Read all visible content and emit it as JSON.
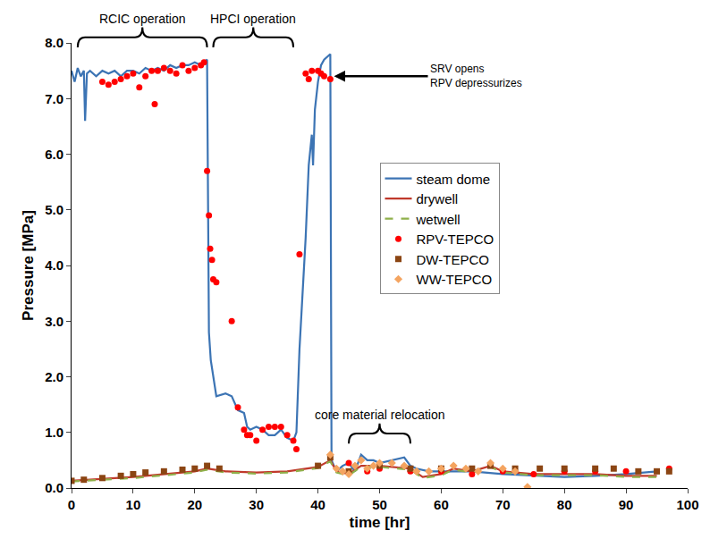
{
  "chart_data": {
    "type": "line",
    "xlabel": "time [hr]",
    "ylabel": "Pressure [MPa]",
    "xlim": [
      0,
      100
    ],
    "xticks": [
      0,
      10,
      20,
      30,
      40,
      50,
      60,
      70,
      80,
      90,
      100
    ],
    "ylim": [
      0,
      8
    ],
    "yticks": [
      {
        "value": 0,
        "label": "0.0"
      },
      {
        "value": 1,
        "label": "1.0"
      },
      {
        "value": 2,
        "label": "2.0"
      },
      {
        "value": 3,
        "label": "3.0"
      },
      {
        "value": 4,
        "label": "4.0"
      },
      {
        "value": 5,
        "label": "5.0"
      },
      {
        "value": 6,
        "label": "6.0"
      },
      {
        "value": 7,
        "label": "7.0"
      },
      {
        "value": 8,
        "label": "8.0"
      }
    ],
    "grid": false,
    "legend": "right",
    "annotations": [
      {
        "text": "RCIC operation",
        "x": [
          1,
          22
        ],
        "y": 7.92
      },
      {
        "text": "HPCI operation",
        "x": [
          23,
          36
        ],
        "y": 7.92
      },
      {
        "text": "SRV opens\nRPV depressurizes",
        "x": 42.6,
        "y": 7.4
      },
      {
        "text": "core material relocation",
        "x": [
          45,
          55
        ],
        "y": 0.8
      }
    ],
    "series": [
      {
        "name": "steam dome",
        "color": "#3c74b4",
        "type": "line",
        "line_style": "solid",
        "x": [
          0,
          0.5,
          1,
          1.5,
          2,
          2.2,
          2.5,
          3,
          4,
          5,
          6,
          7,
          8,
          9,
          10,
          11,
          12,
          13,
          14,
          15,
          16,
          17,
          18,
          19,
          20,
          21,
          22,
          22.3,
          22.6,
          23,
          23.5,
          25,
          26,
          27,
          28,
          28.5,
          29,
          30,
          31,
          32,
          33,
          34,
          35,
          36,
          36.5,
          37,
          38,
          38.5,
          39,
          39.2,
          39.5,
          40,
          40.5,
          41,
          42,
          42.2,
          43,
          44,
          45,
          46,
          47,
          48,
          49,
          50,
          52,
          54,
          55,
          56,
          58,
          60,
          65,
          70,
          75,
          80,
          85,
          90,
          95
        ],
        "values": [
          7.5,
          7.3,
          7.55,
          7.4,
          7.5,
          6.6,
          7.45,
          7.5,
          7.4,
          7.5,
          7.45,
          7.5,
          7.4,
          7.5,
          7.5,
          7.45,
          7.55,
          7.5,
          7.55,
          7.5,
          7.6,
          7.55,
          7.6,
          7.6,
          7.65,
          7.6,
          7.7,
          2.8,
          2.3,
          2.0,
          1.65,
          1.7,
          1.65,
          1.4,
          1.35,
          1.1,
          1.05,
          1.1,
          1.05,
          0.95,
          0.95,
          1.05,
          0.9,
          0.85,
          1.0,
          2.5,
          4.5,
          5.8,
          6.35,
          5.8,
          6.8,
          7.3,
          7.6,
          7.7,
          7.8,
          0.5,
          0.3,
          0.4,
          0.45,
          0.3,
          0.6,
          0.5,
          0.5,
          0.45,
          0.5,
          0.55,
          0.4,
          0.35,
          0.3,
          0.3,
          0.3,
          0.25,
          0.22,
          0.2,
          0.22,
          0.25,
          0.3
        ]
      },
      {
        "name": "drywell",
        "color": "#c0392b",
        "type": "line",
        "line_style": "solid",
        "x": [
          0,
          10,
          20,
          22,
          25,
          30,
          35,
          38,
          40,
          42,
          43,
          45,
          47,
          50,
          55,
          57,
          60,
          62,
          65,
          68,
          70,
          75,
          80,
          85,
          90,
          95
        ],
        "values": [
          0.13,
          0.2,
          0.3,
          0.35,
          0.3,
          0.28,
          0.3,
          0.35,
          0.38,
          0.5,
          0.3,
          0.25,
          0.4,
          0.4,
          0.35,
          0.2,
          0.25,
          0.35,
          0.3,
          0.4,
          0.3,
          0.25,
          0.25,
          0.25,
          0.22,
          0.22
        ]
      },
      {
        "name": "wetwell",
        "color": "#8fb04a",
        "type": "line",
        "line_style": "dashed",
        "x": [
          0,
          10,
          20,
          22,
          25,
          30,
          35,
          38,
          40,
          42,
          43,
          45,
          47,
          50,
          55,
          57,
          60,
          62,
          65,
          68,
          70,
          75,
          80,
          85,
          90,
          95
        ],
        "values": [
          0.12,
          0.18,
          0.28,
          0.33,
          0.28,
          0.26,
          0.28,
          0.33,
          0.36,
          0.48,
          0.28,
          0.23,
          0.38,
          0.38,
          0.33,
          0.18,
          0.23,
          0.33,
          0.28,
          0.38,
          0.28,
          0.23,
          0.23,
          0.23,
          0.2,
          0.2
        ]
      },
      {
        "name": "RPV-TEPCO",
        "color": "#ff0000",
        "type": "scatter",
        "marker": "circle",
        "x": [
          5,
          6,
          7,
          8,
          9,
          10,
          11,
          12,
          13,
          13.5,
          14,
          15,
          16,
          17,
          18,
          19,
          20,
          21,
          21.5,
          22,
          22.3,
          22.5,
          22.8,
          23,
          23.5,
          26,
          27,
          28,
          28.5,
          29,
          30,
          31,
          32,
          33,
          34,
          35,
          36,
          36.5,
          37,
          38,
          38.5,
          39,
          40,
          40.5,
          41,
          42,
          45,
          48,
          50,
          55,
          60,
          65,
          70,
          75,
          80,
          85,
          90,
          97
        ],
        "values": [
          7.3,
          7.25,
          7.3,
          7.35,
          7.4,
          7.45,
          7.2,
          7.4,
          7.5,
          6.9,
          7.5,
          7.55,
          7.5,
          7.45,
          7.6,
          7.5,
          7.55,
          7.6,
          7.65,
          5.7,
          4.9,
          4.3,
          4.1,
          3.75,
          3.7,
          3.0,
          1.45,
          1.05,
          0.95,
          0.95,
          0.85,
          1.05,
          1.1,
          1.1,
          1.1,
          0.95,
          0.85,
          0.7,
          4.2,
          7.45,
          7.35,
          7.5,
          7.5,
          7.45,
          7.4,
          7.35,
          0.45,
          0.3,
          0.35,
          0.3,
          0.3,
          0.25,
          0.3,
          0.25,
          0.3,
          0.3,
          0.3,
          0.35
        ]
      },
      {
        "name": "DW-TEPCO",
        "color": "#8b4513",
        "type": "scatter",
        "marker": "square",
        "x": [
          0,
          2,
          5,
          8,
          10,
          12,
          15,
          18,
          20,
          22,
          24,
          40,
          42,
          45,
          50,
          55,
          60,
          65,
          68,
          72,
          76,
          80,
          85,
          88,
          92,
          95,
          97
        ],
        "values": [
          0.13,
          0.15,
          0.18,
          0.22,
          0.25,
          0.28,
          0.3,
          0.33,
          0.35,
          0.4,
          0.35,
          0.4,
          0.55,
          0.3,
          0.4,
          0.35,
          0.35,
          0.35,
          0.4,
          0.35,
          0.35,
          0.35,
          0.35,
          0.35,
          0.3,
          0.3,
          0.3
        ]
      },
      {
        "name": "WW-TEPCO",
        "color": "#f4a460",
        "type": "scatter",
        "marker": "diamond",
        "x": [
          42,
          43,
          44,
          45,
          46,
          47,
          48,
          49,
          50,
          52,
          54,
          56,
          58,
          60,
          62,
          64,
          66,
          68,
          70,
          72,
          74
        ],
        "values": [
          0.6,
          0.35,
          0.3,
          0.25,
          0.4,
          0.5,
          0.35,
          0.4,
          0.45,
          0.45,
          0.4,
          0.3,
          0.3,
          0.35,
          0.4,
          0.35,
          0.3,
          0.45,
          0.35,
          0.3,
          0.02
        ]
      }
    ]
  }
}
